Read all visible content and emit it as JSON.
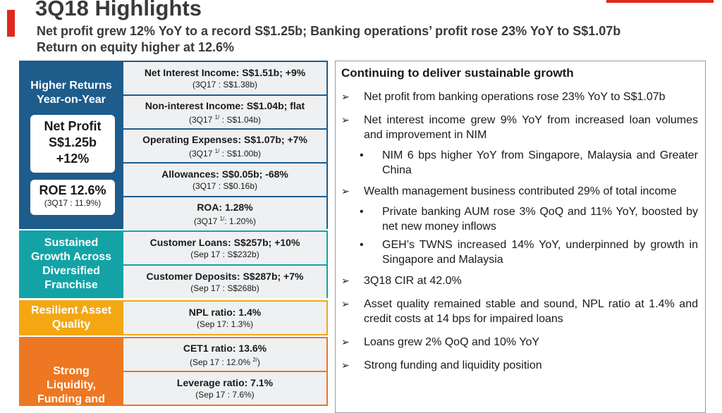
{
  "header": {
    "title": "3Q18 Highlights",
    "subtitle_line1": "Net profit grew 12% YoY to a record S$1.25b; Banking operations’ profit rose 23% YoY to S$1.07b",
    "subtitle_line2": "Return on equity higher at 12.6%"
  },
  "left": {
    "higher_returns": {
      "label": "Higher Returns Year-on-Year",
      "net_profit_label": "Net Profit",
      "net_profit_value": "S$1.25b",
      "net_profit_change": "+12%",
      "roe_value": "ROE 12.6%",
      "roe_prior": "(3Q17 : 11.9%)"
    },
    "sustained": {
      "label": "Sustained Growth Across Diversified Franchise"
    },
    "resilient": {
      "label": "Resilient Asset Quality"
    },
    "strong": {
      "label": "Strong Liquidity, Funding and"
    }
  },
  "metrics": {
    "nii": {
      "main": "Net Interest Income: S$1.51b; +9%",
      "sub": "(3Q17 : S$1.38b)"
    },
    "nonii": {
      "main": "Non-interest Income: S$1.04b; flat",
      "sub_pre": "(3Q17 ",
      "sup": "1/",
      "sub_post": " : S$1.04b)"
    },
    "opex": {
      "main": "Operating Expenses: S$1.07b; +7%",
      "sub_pre": "(3Q17 ",
      "sup": "1/",
      "sub_post": " : S$1.00b)"
    },
    "allow": {
      "main": "Allowances: S$0.05b; -68%",
      "sub": "(3Q17 : S$0.16b)"
    },
    "roa": {
      "main": "ROA: 1.28%",
      "sub_pre": "(3Q17 ",
      "sup": "1/",
      "sub_post": ": 1.20%)"
    },
    "loans": {
      "main": "Customer Loans: S$257b; +10%",
      "sub": "(Sep 17 : S$232b)"
    },
    "deposits": {
      "main": "Customer Deposits: S$287b; +7%",
      "sub": "(Sep 17 : S$268b)"
    },
    "npl": {
      "main": "NPL ratio: 1.4%",
      "sub": "(Sep 17: 1.3%)"
    },
    "cet1": {
      "main": "CET1 ratio: 13.6%",
      "sub_pre": "(Sep 17 : 12.0% ",
      "sup": "2/",
      "sub_post": ")"
    },
    "leverage": {
      "main": "Leverage ratio: 7.1%",
      "sub": "(Sep 17 : 7.6%)"
    }
  },
  "right": {
    "heading": "Continuing to deliver sustainable growth",
    "arrow": "➢",
    "dot": "•",
    "b1": "Net profit from banking operations rose 23% YoY to S$1.07b",
    "b2": "Net interest income grew 9% YoY from increased loan volumes and improvement in NIM",
    "b2s1": "NIM 6 bps higher YoY from Singapore, Malaysia and Greater China",
    "b3": "Wealth management business contributed 29% of total income",
    "b3s1": "Private banking AUM rose 3% QoQ and 11% YoY, boosted by net new money inflows",
    "b3s2": "GEH’s TWNS increased 14% YoY, underpinned by growth in Singapore and Malaysia",
    "b4": "3Q18 CIR at 42.0%",
    "b5": "Asset quality remained stable and sound, NPL ratio at 1.4% and credit costs at 14 bps for impaired loans",
    "b6": "Loans grew 2% QoQ and 10% YoY",
    "b7": "Strong funding and liquidity position"
  }
}
